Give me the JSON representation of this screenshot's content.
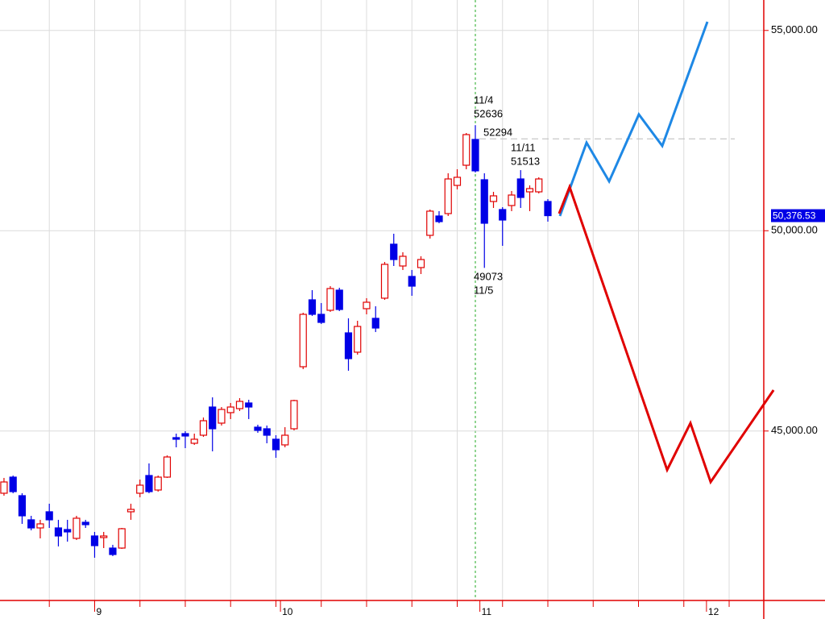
{
  "chart_data": {
    "type": "candlestick",
    "x": [
      0,
      1,
      2,
      3,
      4,
      5,
      6,
      7,
      8,
      9,
      10,
      11,
      12,
      13,
      14,
      15,
      16,
      17,
      18,
      19,
      20,
      21,
      22,
      23,
      24,
      25,
      26,
      27,
      28,
      29,
      30,
      31,
      32,
      33,
      34,
      35,
      36,
      37,
      38,
      39,
      40,
      41,
      42,
      43,
      44,
      45,
      46,
      47,
      48,
      49,
      50,
      51,
      52,
      53,
      54,
      55,
      56,
      57,
      58,
      59,
      60
    ],
    "open": [
      43447,
      43849,
      43386,
      42783,
      42581,
      42984,
      42581,
      42541,
      42320,
      42722,
      42380,
      42340,
      42078,
      42078,
      42984,
      43447,
      43889,
      43527,
      43849,
      44835,
      44935,
      44694,
      44895,
      45599,
      45197,
      45459,
      45559,
      45700,
      45096,
      45056,
      44795,
      44654,
      45056,
      46605,
      48275,
      47913,
      48014,
      48517,
      47450,
      46968,
      48054,
      47813,
      48316,
      49664,
      49120,
      48859,
      49080,
      49885,
      50368,
      50428,
      51132,
      51635,
      52279,
      51273,
      50730,
      50529,
      50629,
      51293,
      50971,
      50971,
      50730
    ],
    "high": [
      43829,
      43889,
      43447,
      42883,
      42783,
      43185,
      42783,
      42783,
      42883,
      42783,
      42481,
      42481,
      42159,
      42581,
      43185,
      43789,
      44191,
      43889,
      44392,
      44935,
      44996,
      44935,
      45338,
      45841,
      45599,
      45700,
      45821,
      45780,
      45157,
      45137,
      44895,
      45096,
      45780,
      47953,
      48517,
      48195,
      48617,
      48577,
      47813,
      47752,
      48316,
      48114,
      49221,
      49925,
      49462,
      49020,
      49362,
      50529,
      50489,
      51434,
      51535,
      52440,
      52636,
      51434,
      50971,
      50589,
      50992,
      51513,
      51132,
      51334,
      50790
    ],
    "low": [
      43386,
      43447,
      42682,
      42521,
      42320,
      42581,
      42119,
      42239,
      42280,
      42581,
      41837,
      42078,
      41877,
      42058,
      42783,
      43346,
      43447,
      43487,
      43829,
      44593,
      44573,
      44654,
      44855,
      44493,
      45137,
      45298,
      45499,
      45298,
      44956,
      44694,
      44332,
      44593,
      45016,
      46545,
      47873,
      47672,
      47974,
      47994,
      46505,
      46907,
      47913,
      47471,
      48275,
      49120,
      49020,
      48376,
      48919,
      49804,
      50187,
      50368,
      51032,
      51535,
      51454,
      49073,
      50569,
      49623,
      50489,
      50569,
      50489,
      50931,
      50227
    ],
    "close": [
      43728,
      43487,
      42883,
      42581,
      42682,
      42783,
      42380,
      42481,
      42823,
      42662,
      42139,
      42380,
      41917,
      42561,
      43044,
      43648,
      43487,
      43849,
      44352,
      44795,
      44875,
      44795,
      45257,
      45056,
      45539,
      45599,
      45740,
      45599,
      45016,
      44895,
      44533,
      44895,
      45760,
      47913,
      47913,
      47712,
      48557,
      48034,
      46807,
      47611,
      48215,
      47571,
      49161,
      49281,
      49362,
      48617,
      49281,
      50489,
      50227,
      51293,
      51334,
      52400,
      51495,
      50187,
      50871,
      50267,
      50891,
      50831,
      51052,
      51293,
      50376.53
    ],
    "up_color": "#e00000",
    "down_color": "#0000e6",
    "lines": [
      {
        "color": "#1e88e5",
        "x": [
          61.33,
          64.27,
          66.76,
          70.04,
          72.62,
          77.6
        ],
        "values": [
          50368,
          52199,
          51233,
          52903,
          52118,
          55217
        ]
      },
      {
        "color": "#e00000",
        "x": [
          61.24,
          62.4,
          73.16,
          75.73,
          77.96,
          84.9
        ],
        "values": [
          50428,
          51092,
          44030,
          45197,
          43728,
          46022
        ]
      }
    ],
    "xlim": [
      -0.44,
      83.82
    ],
    "xticks": [
      {
        "value": 10,
        "label": "9"
      },
      {
        "value": 30.5,
        "label": "10"
      },
      {
        "value": 52.5,
        "label": "11"
      },
      {
        "value": 77.5,
        "label": "12"
      }
    ],
    "ylim": [
      40770,
      55760
    ],
    "yticks": [
      {
        "value": 45000,
        "label": "45,000.00"
      },
      {
        "value": 50000,
        "label": "50,000.00"
      },
      {
        "value": 55000,
        "label": "55,000.00"
      }
    ],
    "grid": true,
    "last_price": {
      "value": 50376.53,
      "label": "50,376.53"
    },
    "reference_value": 52294,
    "high_mark": {
      "date": "11/4",
      "value": 52636
    },
    "low_mark": {
      "value": 49073,
      "date": "11/5"
    },
    "point_mark": {
      "date": "11/11",
      "value": 51513
    }
  }
}
